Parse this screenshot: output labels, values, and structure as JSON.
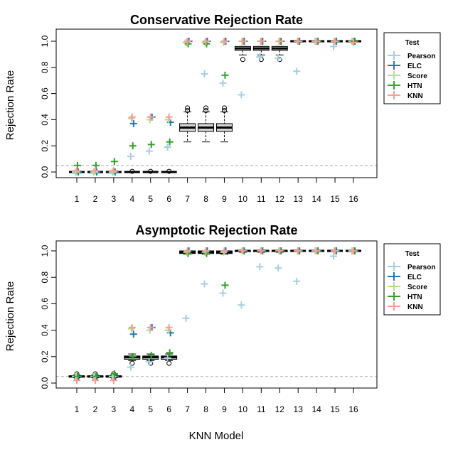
{
  "chart_data": [
    {
      "type": "boxplot-with-points",
      "title": "Conservative Rejection Rate",
      "xlabel": "KNN Model",
      "ylabel": "Rejection Rate",
      "categories": [
        "1",
        "2",
        "3",
        "4",
        "5",
        "6",
        "7",
        "8",
        "9",
        "10",
        "11",
        "12",
        "13",
        "14",
        "15",
        "16"
      ],
      "yticks": [
        "0.0",
        "0.2",
        "0.4",
        "0.6",
        "0.8",
        "1.0"
      ],
      "ylim": [
        0,
        1
      ],
      "reference_line": 0.05,
      "legend": {
        "title": "Test",
        "position": "right"
      },
      "boxes": [
        {
          "q1": 0.0,
          "median": 0.0,
          "q3": 0.0,
          "whisker_low": 0.0,
          "whisker_high": 0.0,
          "outliers": [
            0.005
          ]
        },
        {
          "q1": 0.0,
          "median": 0.0,
          "q3": 0.0,
          "whisker_low": 0.0,
          "whisker_high": 0.0,
          "outliers": [
            0.005
          ]
        },
        {
          "q1": 0.0,
          "median": 0.0,
          "q3": 0.0,
          "whisker_low": 0.0,
          "whisker_high": 0.0,
          "outliers": [
            0.005
          ]
        },
        {
          "q1": 0.0,
          "median": 0.0,
          "q3": 0.0,
          "whisker_low": 0.0,
          "whisker_high": 0.0,
          "outliers": [
            0.005
          ]
        },
        {
          "q1": 0.0,
          "median": 0.0,
          "q3": 0.0,
          "whisker_low": 0.0,
          "whisker_high": 0.0,
          "outliers": [
            0.005
          ]
        },
        {
          "q1": 0.0,
          "median": 0.0,
          "q3": 0.0,
          "whisker_low": 0.0,
          "whisker_high": 0.0,
          "outliers": [
            0.005
          ]
        },
        {
          "q1": 0.31,
          "median": 0.34,
          "q3": 0.37,
          "whisker_low": 0.23,
          "whisker_high": 0.46,
          "outliers": [
            0.47,
            0.49
          ]
        },
        {
          "q1": 0.31,
          "median": 0.34,
          "q3": 0.37,
          "whisker_low": 0.23,
          "whisker_high": 0.46,
          "outliers": [
            0.47,
            0.49
          ]
        },
        {
          "q1": 0.31,
          "median": 0.34,
          "q3": 0.37,
          "whisker_low": 0.23,
          "whisker_high": 0.46,
          "outliers": [
            0.47,
            0.49
          ]
        },
        {
          "q1": 0.93,
          "median": 0.945,
          "q3": 0.96,
          "whisker_low": 0.895,
          "whisker_high": 0.96,
          "outliers": [
            0.86
          ]
        },
        {
          "q1": 0.93,
          "median": 0.945,
          "q3": 0.96,
          "whisker_low": 0.895,
          "whisker_high": 0.96,
          "outliers": [
            0.86
          ]
        },
        {
          "q1": 0.93,
          "median": 0.945,
          "q3": 0.96,
          "whisker_low": 0.895,
          "whisker_high": 0.96,
          "outliers": [
            0.86
          ]
        },
        {
          "q1": 1.0,
          "median": 1.0,
          "q3": 1.0,
          "whisker_low": 1.0,
          "whisker_high": 1.0,
          "outliers": []
        },
        {
          "q1": 1.0,
          "median": 1.0,
          "q3": 1.0,
          "whisker_low": 1.0,
          "whisker_high": 1.0,
          "outliers": []
        },
        {
          "q1": 1.0,
          "median": 1.0,
          "q3": 1.0,
          "whisker_low": 1.0,
          "whisker_high": 1.0,
          "outliers": []
        },
        {
          "q1": 1.0,
          "median": 1.0,
          "q3": 1.0,
          "whisker_low": 1.0,
          "whisker_high": 1.0,
          "outliers": []
        }
      ],
      "series": [
        {
          "name": "Pearson",
          "color": "#a6cee3",
          "values": [
            0.0,
            0.0,
            0.0,
            0.12,
            0.16,
            0.19,
            0.99,
            0.75,
            0.68,
            0.59,
            0.88,
            0.87,
            0.77,
            1.0,
            0.96,
            1.0
          ]
        },
        {
          "name": "ELC",
          "color": "#1f78b4",
          "values": [
            0.0,
            0.0,
            0.0,
            0.37,
            0.42,
            0.38,
            1.0,
            1.0,
            1.0,
            1.0,
            1.0,
            1.0,
            1.0,
            1.0,
            1.0,
            1.0
          ]
        },
        {
          "name": "Score",
          "color": "#b2df8a",
          "values": [
            0.0,
            0.0,
            0.0,
            0.41,
            0.4,
            0.4,
            0.99,
            0.99,
            0.99,
            1.0,
            1.0,
            1.0,
            1.0,
            1.0,
            1.0,
            1.0
          ]
        },
        {
          "name": "HTN",
          "color": "#33a02c",
          "values": [
            0.05,
            0.05,
            0.08,
            0.2,
            0.21,
            0.23,
            0.98,
            0.98,
            0.74,
            1.0,
            1.0,
            1.0,
            1.0,
            1.0,
            1.0,
            1.0
          ]
        },
        {
          "name": "KNN",
          "color": "#fb9a99",
          "values": [
            0.01,
            0.01,
            0.01,
            0.42,
            0.42,
            0.42,
            1.0,
            1.0,
            1.0,
            1.0,
            1.0,
            1.0,
            1.0,
            1.0,
            1.0,
            0.99
          ]
        }
      ]
    },
    {
      "type": "boxplot-with-points",
      "title": "Asymptotic Rejection Rate",
      "xlabel": "KNN Model",
      "ylabel": "Rejection Rate",
      "categories": [
        "1",
        "2",
        "3",
        "4",
        "5",
        "6",
        "7",
        "8",
        "9",
        "10",
        "11",
        "12",
        "13",
        "14",
        "15",
        "16"
      ],
      "yticks": [
        "0.0",
        "0.2",
        "0.4",
        "0.6",
        "0.8",
        "1.0"
      ],
      "ylim": [
        0,
        1
      ],
      "reference_line": 0.05,
      "legend": {
        "title": "Test",
        "position": "right"
      },
      "boxes": [
        {
          "q1": 0.045,
          "median": 0.05,
          "q3": 0.055,
          "whisker_low": 0.04,
          "whisker_high": 0.06,
          "outliers": [
            0.07,
            0.035
          ]
        },
        {
          "q1": 0.045,
          "median": 0.05,
          "q3": 0.055,
          "whisker_low": 0.04,
          "whisker_high": 0.06,
          "outliers": [
            0.07,
            0.035
          ]
        },
        {
          "q1": 0.045,
          "median": 0.05,
          "q3": 0.055,
          "whisker_low": 0.04,
          "whisker_high": 0.06,
          "outliers": [
            0.07,
            0.035
          ]
        },
        {
          "q1": 0.18,
          "median": 0.195,
          "q3": 0.205,
          "whisker_low": 0.17,
          "whisker_high": 0.22,
          "outliers": [
            0.15
          ]
        },
        {
          "q1": 0.18,
          "median": 0.195,
          "q3": 0.205,
          "whisker_low": 0.17,
          "whisker_high": 0.22,
          "outliers": [
            0.15
          ]
        },
        {
          "q1": 0.18,
          "median": 0.195,
          "q3": 0.205,
          "whisker_low": 0.17,
          "whisker_high": 0.22,
          "outliers": [
            0.15
          ]
        },
        {
          "q1": 0.98,
          "median": 0.99,
          "q3": 1.0,
          "whisker_low": 0.975,
          "whisker_high": 1.0,
          "outliers": []
        },
        {
          "q1": 0.98,
          "median": 0.99,
          "q3": 1.0,
          "whisker_low": 0.975,
          "whisker_high": 1.0,
          "outliers": []
        },
        {
          "q1": 0.98,
          "median": 0.99,
          "q3": 1.0,
          "whisker_low": 0.975,
          "whisker_high": 1.0,
          "outliers": []
        },
        {
          "q1": 0.995,
          "median": 1.0,
          "q3": 1.0,
          "whisker_low": 0.99,
          "whisker_high": 1.0,
          "outliers": []
        },
        {
          "q1": 0.995,
          "median": 1.0,
          "q3": 1.0,
          "whisker_low": 0.99,
          "whisker_high": 1.0,
          "outliers": []
        },
        {
          "q1": 0.995,
          "median": 1.0,
          "q3": 1.0,
          "whisker_low": 0.99,
          "whisker_high": 1.0,
          "outliers": []
        },
        {
          "q1": 1.0,
          "median": 1.0,
          "q3": 1.0,
          "whisker_low": 1.0,
          "whisker_high": 1.0,
          "outliers": []
        },
        {
          "q1": 1.0,
          "median": 1.0,
          "q3": 1.0,
          "whisker_low": 1.0,
          "whisker_high": 1.0,
          "outliers": []
        },
        {
          "q1": 1.0,
          "median": 1.0,
          "q3": 1.0,
          "whisker_low": 1.0,
          "whisker_high": 1.0,
          "outliers": []
        },
        {
          "q1": 1.0,
          "median": 1.0,
          "q3": 1.0,
          "whisker_low": 1.0,
          "whisker_high": 1.0,
          "outliers": []
        }
      ],
      "series": [
        {
          "name": "Pearson",
          "color": "#a6cee3",
          "values": [
            0.05,
            0.05,
            0.05,
            0.12,
            0.16,
            0.19,
            0.49,
            0.75,
            0.68,
            0.59,
            0.88,
            0.87,
            0.77,
            1.0,
            0.96,
            1.0
          ]
        },
        {
          "name": "ELC",
          "color": "#1f78b4",
          "values": [
            0.05,
            0.05,
            0.05,
            0.37,
            0.42,
            0.38,
            1.0,
            1.0,
            1.0,
            1.0,
            1.0,
            1.0,
            1.0,
            1.0,
            1.0,
            1.0
          ]
        },
        {
          "name": "Score",
          "color": "#b2df8a",
          "values": [
            0.05,
            0.05,
            0.05,
            0.41,
            0.4,
            0.4,
            0.99,
            0.99,
            0.99,
            1.0,
            1.0,
            1.0,
            1.0,
            1.0,
            1.0,
            1.0
          ]
        },
        {
          "name": "HTN",
          "color": "#33a02c",
          "values": [
            0.05,
            0.05,
            0.07,
            0.2,
            0.21,
            0.23,
            0.98,
            0.98,
            0.74,
            1.0,
            1.0,
            1.0,
            1.0,
            1.0,
            1.0,
            1.0
          ]
        },
        {
          "name": "KNN",
          "color": "#fb9a99",
          "values": [
            0.02,
            0.02,
            0.02,
            0.42,
            0.42,
            0.42,
            1.0,
            1.0,
            1.0,
            1.0,
            1.0,
            1.0,
            1.0,
            1.0,
            1.0,
            1.0
          ]
        }
      ]
    }
  ]
}
